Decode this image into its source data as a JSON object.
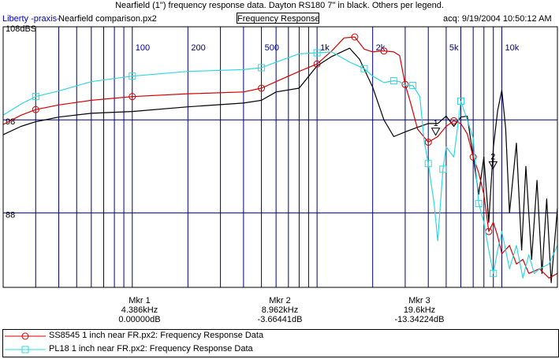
{
  "header": {
    "title": "Nearfield (1\") frequency response data. Dayton RS180 7\" in black. Others per legend.",
    "app_name": "Liberty -praxis-",
    "file_name": "Nearfield comparison.px2",
    "mode_button": "Frequency Response",
    "acquired": "acq: 9/19/2004 10:50:12 AM"
  },
  "colors": {
    "plot_line": "#00007f",
    "series_black": "#000000",
    "series_red": "#d40000",
    "series_cyan": "#30d8e0"
  },
  "markers": [
    {
      "name": "Mkr 1",
      "freq": "4.386kHz",
      "level": "0.00000dB",
      "label": "1",
      "x_hz": 4386,
      "y_db": 96.6
    },
    {
      "name": "Mkr 2",
      "freq": "8.962kHz",
      "level": "-3.66441dB",
      "label": "2",
      "x_hz": 8962,
      "y_db": 93.0
    },
    {
      "name": "Mkr 3",
      "freq": "19.6kHz",
      "level": "-13.34224dB",
      "label": "",
      "x_hz": 19600,
      "y_db": 83.3
    }
  ],
  "legend": [
    {
      "name": "SS8545 1 inch near FR.px2:  Frequency Response Data",
      "color": "#d40000",
      "marker": "circle"
    },
    {
      "name": "PL18 1 inch near FR.px2:  Frequency Response Data",
      "color": "#30d8e0",
      "marker": "square"
    }
  ],
  "chart_data": {
    "type": "line",
    "x_scale": "log",
    "xlim": [
      20,
      20000
    ],
    "ylim": [
      80,
      108
    ],
    "x_tick_labels": [
      {
        "value": 100,
        "label": "100"
      },
      {
        "value": 200,
        "label": "200"
      },
      {
        "value": 500,
        "label": "500"
      },
      {
        "value": 1000,
        "label": "1k"
      },
      {
        "value": 2000,
        "label": "2k"
      },
      {
        "value": 5000,
        "label": "5k"
      },
      {
        "value": 10000,
        "label": "10k"
      }
    ],
    "x_gridlines": [
      30,
      40,
      50,
      60,
      70,
      80,
      90,
      100,
      200,
      300,
      400,
      500,
      600,
      700,
      800,
      900,
      1000,
      2000,
      3000,
      4000,
      5000,
      6000,
      7000,
      8000,
      9000,
      10000
    ],
    "y_tick_labels": [
      {
        "value": 108,
        "label": "108dBS"
      },
      {
        "value": 98,
        "label": "98"
      },
      {
        "value": 88,
        "label": "88"
      }
    ],
    "series": [
      {
        "color": "#000000",
        "marker": "none",
        "points": [
          [
            20,
            96.4
          ],
          [
            25,
            97.3
          ],
          [
            30,
            97.8
          ],
          [
            40,
            98.3
          ],
          [
            60,
            98.7
          ],
          [
            100,
            98.9
          ],
          [
            200,
            99.4
          ],
          [
            400,
            99.8
          ],
          [
            500,
            100.1
          ],
          [
            600,
            101.0
          ],
          [
            800,
            101.4
          ],
          [
            1000,
            103.8
          ],
          [
            1200,
            104.8
          ],
          [
            1500,
            105.7
          ],
          [
            1700,
            104.5
          ],
          [
            2000,
            101.5
          ],
          [
            2300,
            98.0
          ],
          [
            2600,
            96.2
          ],
          [
            3000,
            96.7
          ],
          [
            3500,
            97.2
          ],
          [
            4000,
            97.6
          ],
          [
            4500,
            97.6
          ],
          [
            5000,
            98.4
          ],
          [
            5500,
            97.3
          ],
          [
            6000,
            98.3
          ],
          [
            6500,
            98.4
          ],
          [
            7000,
            94.0
          ],
          [
            7500,
            90.0
          ],
          [
            8000,
            94.0
          ],
          [
            8500,
            87.0
          ],
          [
            9000,
            95.0
          ],
          [
            9500,
            99.0
          ],
          [
            10000,
            101.2
          ],
          [
            10500,
            97.0
          ],
          [
            11000,
            88.0
          ],
          [
            12000,
            95.5
          ],
          [
            12800,
            84.0
          ],
          [
            13500,
            93.0
          ],
          [
            14500,
            83.0
          ],
          [
            15500,
            91.5
          ],
          [
            16500,
            81.5
          ],
          [
            17500,
            89.5
          ],
          [
            18500,
            80.5
          ],
          [
            20000,
            88.5
          ]
        ]
      },
      {
        "color": "#d40000",
        "marker": "circle",
        "points": [
          [
            20,
            97.5
          ],
          [
            25,
            98.5
          ],
          [
            30,
            99.1
          ],
          [
            40,
            99.6
          ],
          [
            60,
            100.1
          ],
          [
            100,
            100.5
          ],
          [
            200,
            100.8
          ],
          [
            400,
            101.0
          ],
          [
            500,
            101.4
          ],
          [
            600,
            102.1
          ],
          [
            800,
            103.2
          ],
          [
            1000,
            104.0
          ],
          [
            1200,
            105.4
          ],
          [
            1400,
            106.8
          ],
          [
            1600,
            106.9
          ],
          [
            1800,
            105.6
          ],
          [
            2000,
            105.3
          ],
          [
            2300,
            105.4
          ],
          [
            2600,
            105.3
          ],
          [
            2800,
            104.9
          ],
          [
            3000,
            101.8
          ],
          [
            3200,
            99.9
          ],
          [
            3500,
            97.0
          ],
          [
            4000,
            95.6
          ],
          [
            4500,
            96.2
          ],
          [
            5000,
            97.3
          ],
          [
            5500,
            97.9
          ],
          [
            6000,
            97.6
          ],
          [
            6500,
            96.5
          ],
          [
            7000,
            94.0
          ],
          [
            7500,
            92.3
          ],
          [
            8000,
            90.0
          ],
          [
            8500,
            86.0
          ],
          [
            9000,
            87.0
          ],
          [
            9500,
            85.5
          ],
          [
            10000,
            83.6
          ],
          [
            11000,
            84.5
          ],
          [
            12000,
            82.5
          ],
          [
            13000,
            83.0
          ],
          [
            14000,
            81.5
          ],
          [
            16000,
            82.0
          ],
          [
            18000,
            81.0
          ],
          [
            20000,
            81.5
          ]
        ]
      },
      {
        "color": "#30d8e0",
        "marker": "square",
        "points": [
          [
            20,
            98.5
          ],
          [
            25,
            99.7
          ],
          [
            30,
            100.5
          ],
          [
            40,
            101.1
          ],
          [
            60,
            102.1
          ],
          [
            100,
            102.7
          ],
          [
            200,
            103.2
          ],
          [
            400,
            103.4
          ],
          [
            500,
            103.6
          ],
          [
            600,
            104.2
          ],
          [
            800,
            105.1
          ],
          [
            1000,
            105.2
          ],
          [
            1200,
            105.3
          ],
          [
            1500,
            104.2
          ],
          [
            1800,
            103.5
          ],
          [
            2000,
            102.7
          ],
          [
            2300,
            102.0
          ],
          [
            2600,
            102.2
          ],
          [
            2800,
            102.1
          ],
          [
            3000,
            101.7
          ],
          [
            3300,
            101.7
          ],
          [
            3600,
            100.5
          ],
          [
            3800,
            95.7
          ],
          [
            4000,
            93.3
          ],
          [
            4300,
            89.0
          ],
          [
            4500,
            85.0
          ],
          [
            4800,
            92.7
          ],
          [
            5000,
            95.1
          ],
          [
            5500,
            94.0
          ],
          [
            6000,
            100.0
          ],
          [
            6500,
            98.0
          ],
          [
            7000,
            96.0
          ],
          [
            7500,
            89.0
          ],
          [
            8000,
            87.0
          ],
          [
            8500,
            84.0
          ],
          [
            9000,
            81.5
          ],
          [
            9500,
            84.0
          ],
          [
            10000,
            86.0
          ],
          [
            11000,
            82.0
          ],
          [
            12000,
            84.5
          ],
          [
            13000,
            81.0
          ],
          [
            14000,
            83.5
          ],
          [
            15000,
            81.5
          ],
          [
            16000,
            82.0
          ],
          [
            18000,
            82.5
          ],
          [
            20000,
            84.5
          ]
        ]
      }
    ]
  }
}
